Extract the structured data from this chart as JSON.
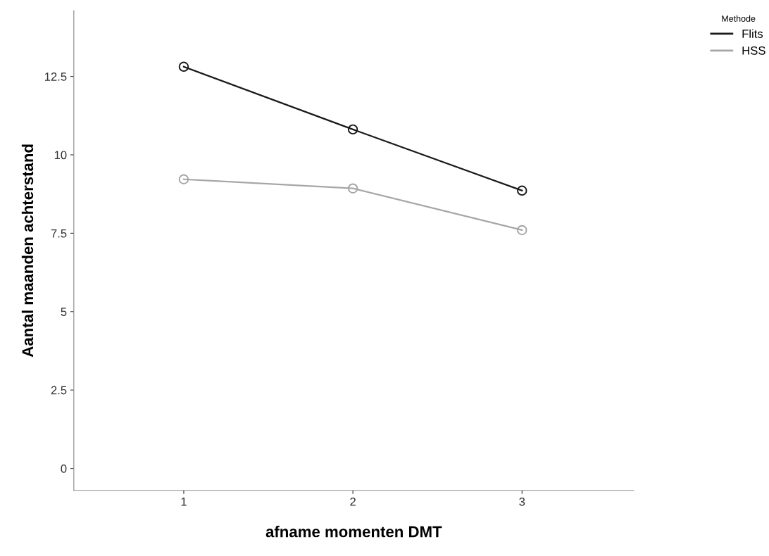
{
  "chart_data": {
    "type": "line",
    "xlabel": "afname momenten DMT",
    "ylabel": "Aantal maanden achterstand",
    "legend_title": "Methode",
    "x": [
      1,
      2,
      3
    ],
    "series": [
      {
        "name": "Flits",
        "color": "#1a1a1a",
        "values": [
          12.81,
          10.81,
          8.86
        ]
      },
      {
        "name": "HSS",
        "color": "#a6a6a6",
        "values": [
          9.22,
          8.93,
          7.6
        ]
      }
    ],
    "xlim": [
      0.35,
      3.66
    ],
    "xticks": [
      1,
      2,
      3
    ],
    "ylim": [
      -0.7,
      14.6
    ],
    "yticks": [
      0,
      2.5,
      5,
      7.5,
      10,
      12.5
    ],
    "marker": "circle",
    "line_style": "solid",
    "grid": false,
    "legend": "top right"
  }
}
